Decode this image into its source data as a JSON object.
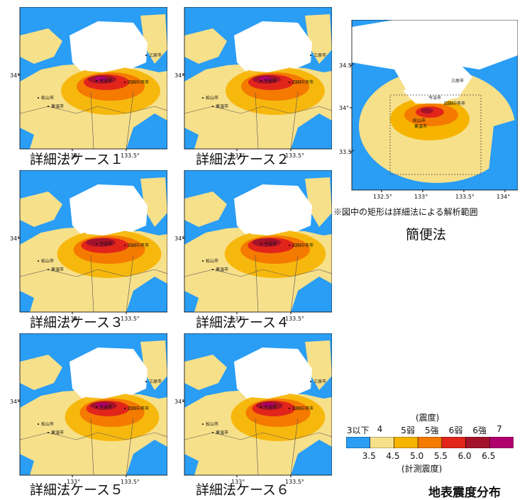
{
  "panels": [
    {
      "caption": "詳細法ケース１",
      "cities": [
        "三原市",
        "今治市",
        "四国中央市",
        "松山市",
        "東温市"
      ]
    },
    {
      "caption": "詳細法ケース２",
      "cities": [
        "三原市",
        "今治市",
        "四国中央市",
        "松山市",
        "東温市"
      ]
    },
    {
      "caption": "詳細法ケース３",
      "cities": [
        "今治市",
        "四国中央市",
        "松山市",
        "東温市"
      ]
    },
    {
      "caption": "詳細法ケース４",
      "cities": [
        "今治市",
        "四国中央市",
        "松山市",
        "東温市"
      ]
    },
    {
      "caption": "詳細法ケース５",
      "cities": [
        "三原市",
        "今治市",
        "四国中央市",
        "松山市",
        "東温市"
      ]
    },
    {
      "caption": "詳細法ケース６",
      "cities": [
        "三原市",
        "今治市",
        "四国中央市",
        "松山市",
        "東温市"
      ]
    }
  ],
  "detail_axes": {
    "x_ticks": [
      "133°",
      "133.5°"
    ],
    "y_ticks": [
      "34°"
    ]
  },
  "simple": {
    "caption": "簡便法",
    "note": "※図中の矩形は詳細法による解析範囲",
    "x_ticks": [
      "132.5°",
      "133°",
      "133.5°",
      "134°"
    ],
    "y_ticks": [
      "34.5°",
      "34°",
      "33.5°"
    ],
    "cities": [
      "三原市",
      "今治市",
      "四国中央市",
      "松山市",
      "東温市"
    ]
  },
  "legend": {
    "top_label": "(震度)",
    "classes": [
      "3以下",
      "4",
      "5弱",
      "5強",
      "6弱",
      "6強",
      "7"
    ],
    "values": [
      "3.5",
      "4.5",
      "5.0",
      "5.5",
      "6.0",
      "6.5"
    ],
    "bottom_label": "(計測震度)",
    "colors": [
      "#2a9df4",
      "#f7e08a",
      "#f6b400",
      "#f47a00",
      "#e2251b",
      "#a3122b",
      "#b1006e"
    ]
  },
  "title": "地表震度分布"
}
